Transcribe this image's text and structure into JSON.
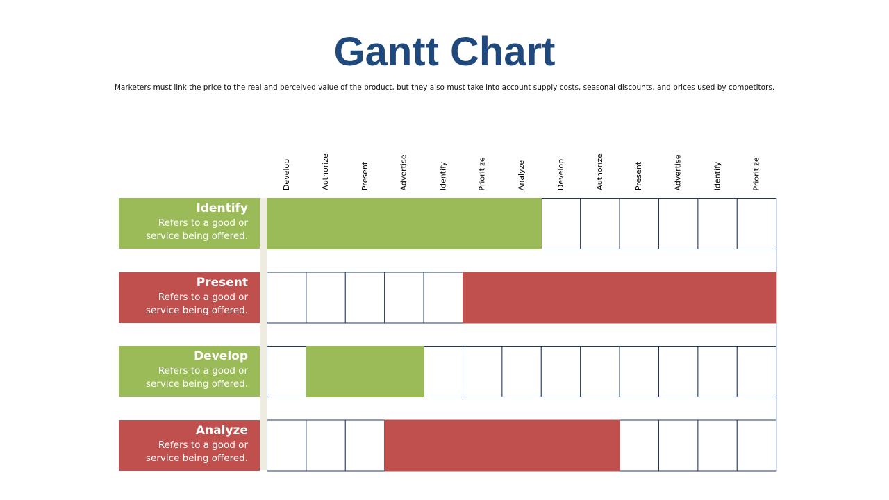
{
  "slide": {
    "title": "Gantt Chart",
    "subtitle": "Marketers must link the price to the real and perceived value of the product, but they also must take into account supply costs, seasonal discounts, and prices used by competitors."
  },
  "colors": {
    "title": "#1f497d",
    "green": "#9bbb59",
    "red": "#c0504d",
    "grid": "#1f3864",
    "divider": "#eeece1"
  },
  "chart_data": {
    "type": "gantt",
    "columns": [
      "Develop",
      "Authorize",
      "Present",
      "Advertise",
      "Identify",
      "Prioritize",
      "Analyze",
      "Develop",
      "Authorize",
      "Present",
      "Advertise",
      "Identify",
      "Prioritize"
    ],
    "tasks": [
      {
        "name": "Identify",
        "description": "Refers to a good or service being offered.",
        "color": "green",
        "start": 0,
        "end": 7
      },
      {
        "name": "Present",
        "description": "Refers to a good or service being offered.",
        "color": "red",
        "start": 5,
        "end": 13
      },
      {
        "name": "Develop",
        "description": "Refers to a good or service being offered.",
        "color": "green",
        "start": 1,
        "end": 4
      },
      {
        "name": "Analyze",
        "description": "Refers to a good or service being offered.",
        "color": "red",
        "start": 3,
        "end": 9
      }
    ]
  }
}
